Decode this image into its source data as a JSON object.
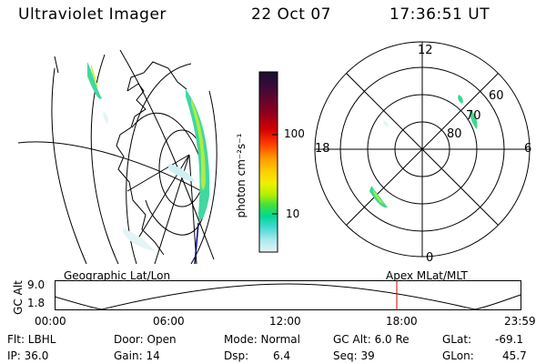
{
  "header": {
    "instrument": "Ultraviolet Imager",
    "date": "22 Oct 07",
    "time": "17:36:51 UT"
  },
  "colorbar": {
    "label": "photon cm⁻²s⁻¹",
    "ticks": [
      "100",
      "10"
    ],
    "colors": [
      "#1a0f2e",
      "#3a0a3a",
      "#8b0020",
      "#d40000",
      "#ff3c00",
      "#ff9a00",
      "#ffd200",
      "#eef000",
      "#b4f000",
      "#40e040",
      "#00d890",
      "#40d8d0",
      "#a8e8ec",
      "#e4f4f6"
    ]
  },
  "polar": {
    "mlt_labels": {
      "top": "12",
      "right": "6",
      "bottom": "0",
      "left": "18"
    },
    "lat_labels": [
      "60",
      "70",
      "80"
    ]
  },
  "altitude_strip": {
    "ylabel": "GC Alt",
    "left_label": "Geographic Lat/Lon",
    "right_label": "Apex MLat/MLT",
    "yticks": [
      "9.0",
      "1.8"
    ],
    "xticks": [
      "00:00",
      "06:00",
      "12:00",
      "18:00",
      "23:59"
    ],
    "current_time_fraction": 0.7339,
    "marker_color": "#d00000"
  },
  "info": {
    "filter": "Flt: LBHL",
    "ip": "IP: 36.0",
    "door": "Door: Open",
    "gain": "Gain: 14",
    "mode": "Mode: Normal",
    "dsp_label": "Dsp:",
    "dsp_value": "6.4",
    "gc_alt": "GC Alt: 6.0 Re",
    "seq": "Seq: 39",
    "glat_label": "GLat:",
    "glat_value": "-69.1",
    "glon_label": "GLon:",
    "glon_value": "45.7"
  }
}
